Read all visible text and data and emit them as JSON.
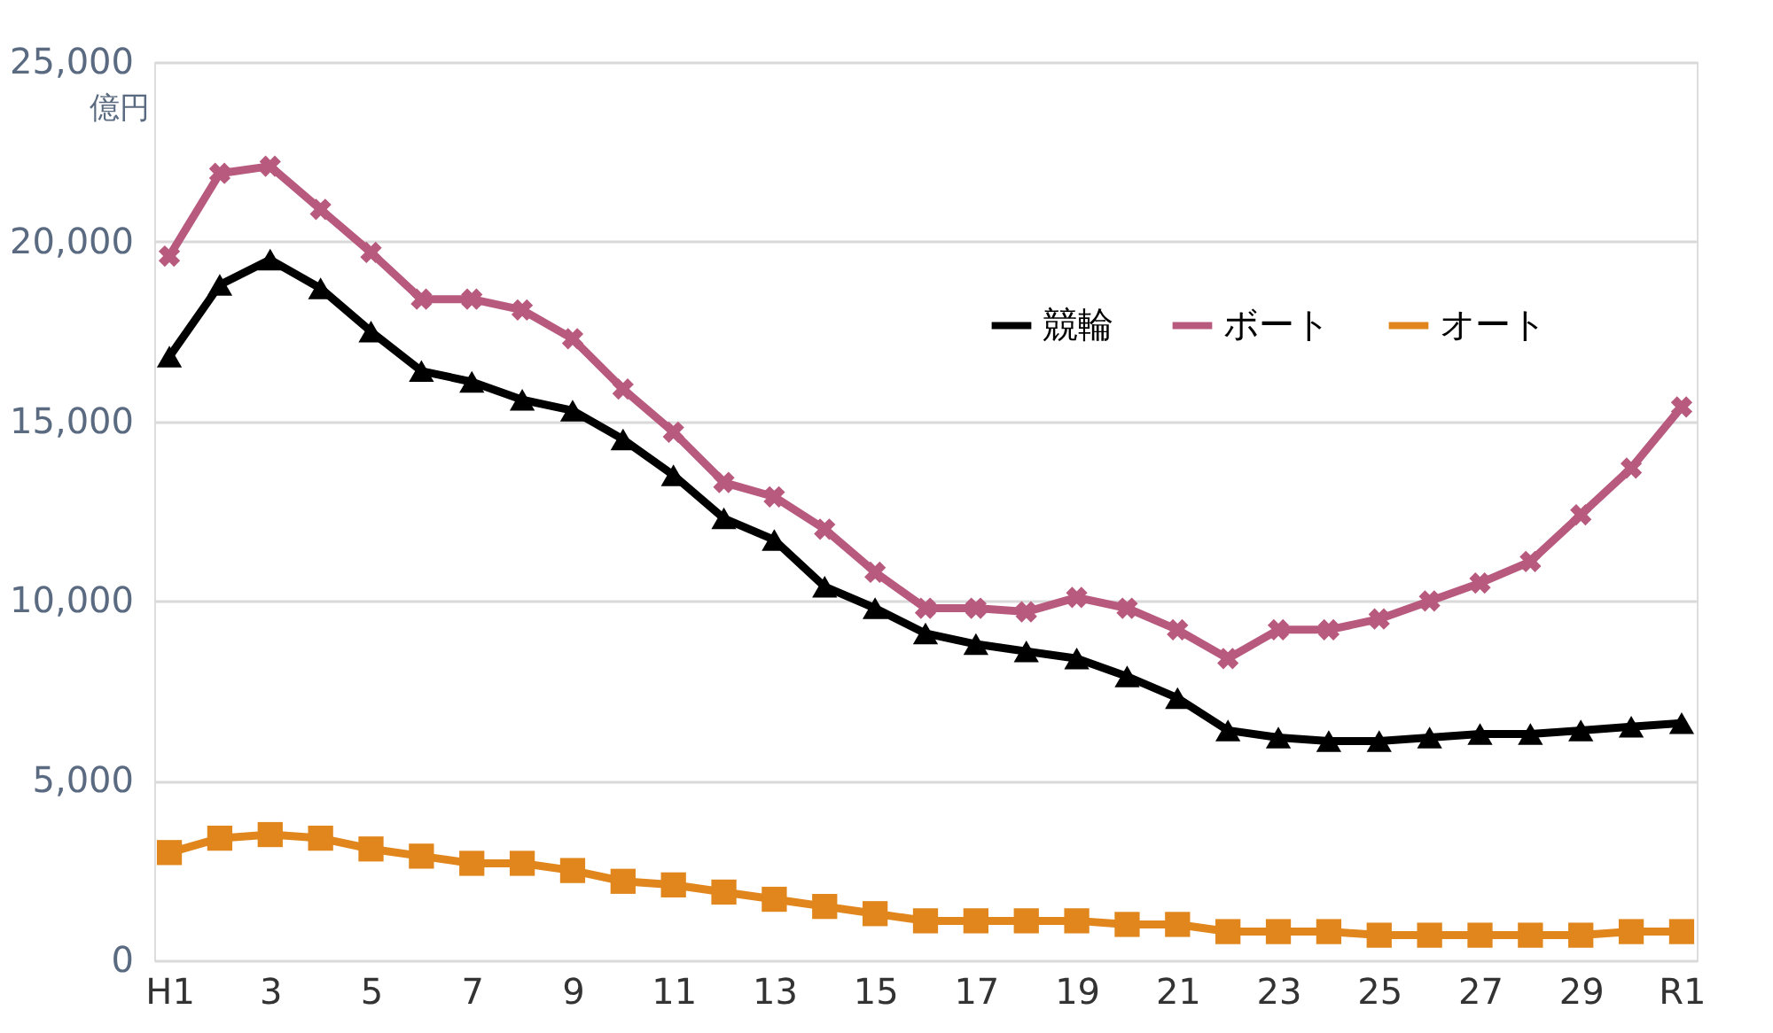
{
  "chart_data": {
    "type": "line",
    "ylabel": "億円",
    "categories": [
      "H1",
      null,
      "3",
      null,
      "5",
      null,
      "7",
      null,
      "9",
      null,
      "11",
      null,
      "13",
      null,
      "15",
      null,
      "17",
      null,
      "19",
      null,
      "21",
      null,
      "23",
      null,
      "25",
      null,
      "27",
      null,
      "29",
      null,
      "R1"
    ],
    "series": [
      {
        "name": "競輪",
        "color": "#000000",
        "marker": "triangle",
        "values": [
          16800,
          18800,
          19500,
          18700,
          17500,
          16400,
          16100,
          15600,
          15300,
          14500,
          13500,
          12300,
          11700,
          10400,
          9800,
          9100,
          8800,
          8600,
          8400,
          7900,
          7300,
          6400,
          6200,
          6100,
          6100,
          6200,
          6300,
          6300,
          6400,
          6500,
          6600
        ]
      },
      {
        "name": "ボート",
        "color": "#b85a7e",
        "marker": "cross",
        "values": [
          19600,
          21900,
          22100,
          20900,
          19700,
          18400,
          18400,
          18100,
          17300,
          15900,
          14700,
          13300,
          12900,
          12000,
          10800,
          9800,
          9800,
          9700,
          10100,
          9800,
          9200,
          8400,
          9200,
          9200,
          9500,
          10000,
          10500,
          11100,
          12400,
          13700,
          15400
        ]
      },
      {
        "name": "オート",
        "color": "#e0861c",
        "marker": "square",
        "values": [
          3000,
          3400,
          3500,
          3400,
          3100,
          2900,
          2700,
          2700,
          2500,
          2200,
          2100,
          1900,
          1700,
          1500,
          1300,
          1100,
          1100,
          1100,
          1100,
          1000,
          1000,
          800,
          800,
          800,
          700,
          700,
          700,
          700,
          700,
          800,
          800
        ]
      }
    ],
    "ylim": [
      0,
      25000
    ],
    "yticks": [
      {
        "value": 0,
        "label": "0"
      },
      {
        "value": 5000,
        "label": "5,000"
      },
      {
        "value": 10000,
        "label": "10,000"
      },
      {
        "value": 15000,
        "label": "15,000"
      },
      {
        "value": 20000,
        "label": "20,000"
      },
      {
        "value": 25000,
        "label": "25,000"
      }
    ],
    "grid": "y",
    "legend": "top right",
    "line_style": "solid"
  }
}
